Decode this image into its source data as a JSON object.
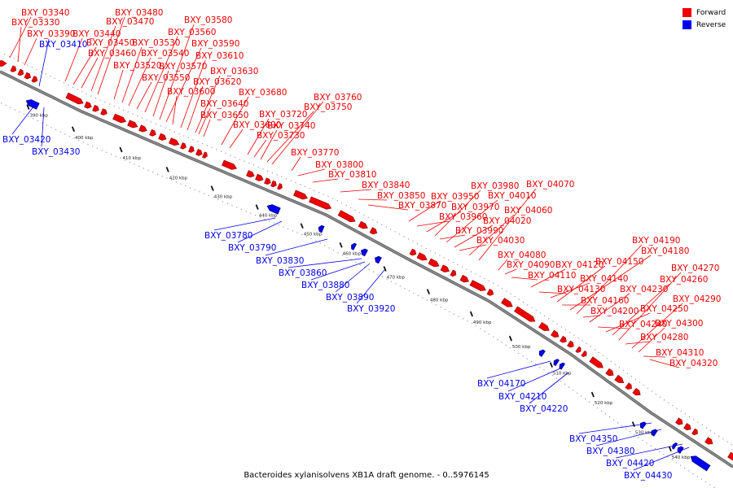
{
  "legend": {
    "forward": {
      "label": "Forward",
      "color": "#ee0000"
    },
    "reverse": {
      "label": "Reverse",
      "color": "#0000ee"
    }
  },
  "caption": "Bacteroides xylanisolvens XB1A draft genome. - 0..5976145",
  "backbone_color": "#888888",
  "tick_labels": [
    "390 kbp",
    "400 kbp",
    "410 kbp",
    "420 kbp",
    "430 kbp",
    "440 kbp",
    "450 kbp",
    "460 kbp",
    "470 kbp",
    "480 kbp",
    "490 kbp",
    "500 kbp",
    "510 kbp",
    "520 kbp",
    "530 kbp",
    "540 kbp"
  ],
  "forward_genes": [
    "BXY_03340",
    "BXY_03330",
    "BXY_03390",
    "BXY_03440",
    "BXY_03450",
    "BXY_03460",
    "BXY_03470",
    "BXY_03480",
    "BXY_03520",
    "BXY_03530",
    "BXY_03540",
    "BXY_03550",
    "BXY_03560",
    "BXY_03570",
    "BXY_03580",
    "BXY_03590",
    "BXY_03600",
    "BXY_03610",
    "BXY_03620",
    "BXY_03630",
    "BXY_03640",
    "BXY_03650",
    "BXY_03680",
    "BXY_03690",
    "BXY_03720",
    "BXY_03730",
    "BXY_03740",
    "BXY_03750",
    "BXY_03760",
    "BXY_03770",
    "BXY_03800",
    "BXY_03810",
    "BXY_03840",
    "BXY_03850",
    "BXY_03870",
    "BXY_03950",
    "BXY_03960",
    "BXY_03970",
    "BXY_03980",
    "BXY_03990",
    "BXY_04010",
    "BXY_04020",
    "BXY_04030",
    "BXY_04060",
    "BXY_04070",
    "BXY_04080",
    "BXY_04090",
    "BXY_04110",
    "BXY_04120",
    "BXY_04130",
    "BXY_04140",
    "BXY_04150",
    "BXY_04160",
    "BXY_04180",
    "BXY_04190",
    "BXY_04200",
    "BXY_04230",
    "BXY_04240",
    "BXY_04250",
    "BXY_04260",
    "BXY_04270",
    "BXY_04280",
    "BXY_04290",
    "BXY_04300",
    "BXY_04310",
    "BXY_04320"
  ],
  "reverse_genes": [
    "BXY_03410",
    "BXY_03420",
    "BXY_03430",
    "BXY_03780",
    "BXY_03790",
    "BXY_03830",
    "BXY_03860",
    "BXY_03880",
    "BXY_03890",
    "BXY_03920",
    "BXY_04170",
    "BXY_04210",
    "BXY_04220",
    "BXY_04350",
    "BXY_04380",
    "BXY_04420",
    "BXY_04430"
  ]
}
